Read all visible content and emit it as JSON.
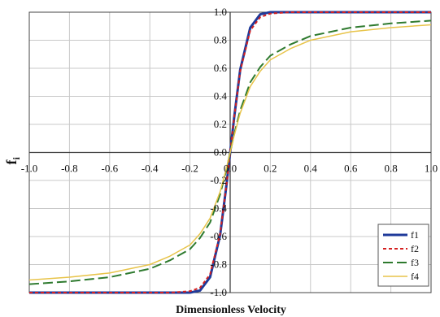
{
  "chart_data": {
    "type": "line",
    "title": "",
    "xlabel": "Dimensionless Velocity",
    "ylabel": "f",
    "ylabel_subscript": "i",
    "xlim": [
      -1.0,
      1.0
    ],
    "ylim": [
      -1.0,
      1.0
    ],
    "x_ticks": [
      "-1.0",
      "-0.8",
      "-0.6",
      "-0.4",
      "-0.2",
      "0.0",
      "0.2",
      "0.4",
      "0.6",
      "0.8",
      "1.0"
    ],
    "y_ticks": [
      "-1.0",
      "-0.8",
      "-0.6",
      "-0.4",
      "-0.2",
      "0.0",
      "0.2",
      "0.4",
      "0.6",
      "0.8",
      "1.0"
    ],
    "grid": true,
    "legend_position": "bottom-right",
    "x": [
      -1.0,
      -0.8,
      -0.6,
      -0.4,
      -0.3,
      -0.2,
      -0.15,
      -0.1,
      -0.05,
      -0.02,
      0.0,
      0.02,
      0.05,
      0.1,
      0.15,
      0.2,
      0.3,
      0.4,
      0.6,
      0.8,
      1.0
    ],
    "series": [
      {
        "name": "f1",
        "color": "#1f3a9a",
        "dash": "solid",
        "width": 3,
        "values": [
          -1.0,
          -1.0,
          -1.0,
          -1.0,
          -1.0,
          -1.0,
          -0.985,
          -0.89,
          -0.59,
          -0.25,
          0.0,
          0.25,
          0.59,
          0.89,
          0.985,
          1.0,
          1.0,
          1.0,
          1.0,
          1.0,
          1.0
        ]
      },
      {
        "name": "f2",
        "color": "#d42020",
        "dash": "4,3",
        "width": 2,
        "values": [
          -1.0,
          -1.0,
          -1.0,
          -1.0,
          -1.0,
          -0.99,
          -0.965,
          -0.87,
          -0.58,
          -0.25,
          0.0,
          0.25,
          0.58,
          0.87,
          0.965,
          0.99,
          1.0,
          1.0,
          1.0,
          1.0,
          1.0
        ]
      },
      {
        "name": "f3",
        "color": "#2e7a2e",
        "dash": "12,5",
        "width": 2,
        "values": [
          -0.94,
          -0.92,
          -0.89,
          -0.83,
          -0.77,
          -0.69,
          -0.61,
          -0.5,
          -0.3,
          -0.13,
          0.0,
          0.13,
          0.3,
          0.5,
          0.61,
          0.69,
          0.77,
          0.83,
          0.89,
          0.92,
          0.94
        ]
      },
      {
        "name": "f4",
        "color": "#e8c44a",
        "dash": "solid",
        "width": 1.5,
        "values": [
          -0.91,
          -0.89,
          -0.86,
          -0.8,
          -0.74,
          -0.66,
          -0.58,
          -0.47,
          -0.28,
          -0.12,
          0.0,
          0.12,
          0.28,
          0.47,
          0.58,
          0.66,
          0.74,
          0.8,
          0.86,
          0.89,
          0.91
        ]
      }
    ]
  }
}
